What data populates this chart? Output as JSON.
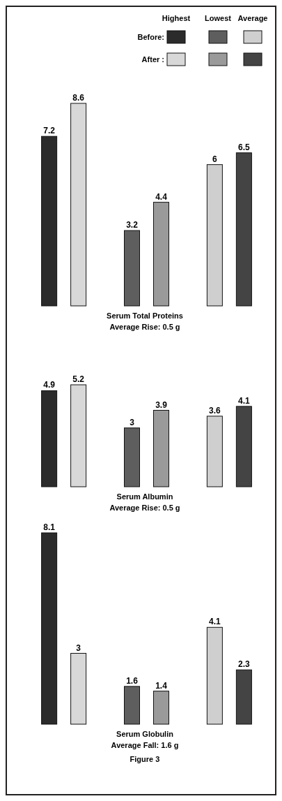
{
  "chart_data": [
    {
      "type": "bar",
      "title": "Serum Total Proteins",
      "subtitle": "Average Rise: 0.5 g",
      "annotations": [
        "Highest",
        "Lowest",
        "Average"
      ],
      "categories": [
        null,
        null,
        null
      ],
      "legend": "top right",
      "data_labels": true,
      "series": [
        {
          "name": "Before:",
          "colors": [
            "#2b2b2b",
            "#5e5e5e",
            "#cfcfcf"
          ],
          "values": [
            7.2,
            3.2,
            6
          ]
        },
        {
          "name": "After :",
          "colors": [
            "#d8d8d8",
            "#9a9a9a",
            "#444444"
          ],
          "values": [
            8.6,
            4.4,
            6.5
          ]
        }
      ]
    },
    {
      "type": "bar",
      "title": "Serum Albumin",
      "subtitle": "Average Rise: 0.5 g",
      "categories": [
        null,
        null,
        null
      ],
      "data_labels": true,
      "series": [
        {
          "colors": [
            "#2b2b2b",
            "#5e5e5e",
            "#cfcfcf"
          ],
          "values": [
            4.9,
            3,
            3.6
          ]
        },
        {
          "colors": [
            "#d8d8d8",
            "#9a9a9a",
            "#444444"
          ],
          "values": [
            5.2,
            3.9,
            4.1
          ]
        }
      ]
    },
    {
      "type": "bar",
      "title": "Serum Globulin",
      "subtitle": "Average Fall: 1.6 g",
      "annotations": [
        "Figure 3"
      ],
      "categories": [
        null,
        null,
        null
      ],
      "data_labels": true,
      "series": [
        {
          "colors": [
            "#2b2b2b",
            "#5e5e5e",
            "#cfcfcf"
          ],
          "values": [
            8.1,
            1.6,
            4.1
          ]
        },
        {
          "colors": [
            "#d8d8d8",
            "#9a9a9a",
            "#444444"
          ],
          "values": [
            3,
            1.4,
            2.3
          ]
        }
      ]
    }
  ]
}
